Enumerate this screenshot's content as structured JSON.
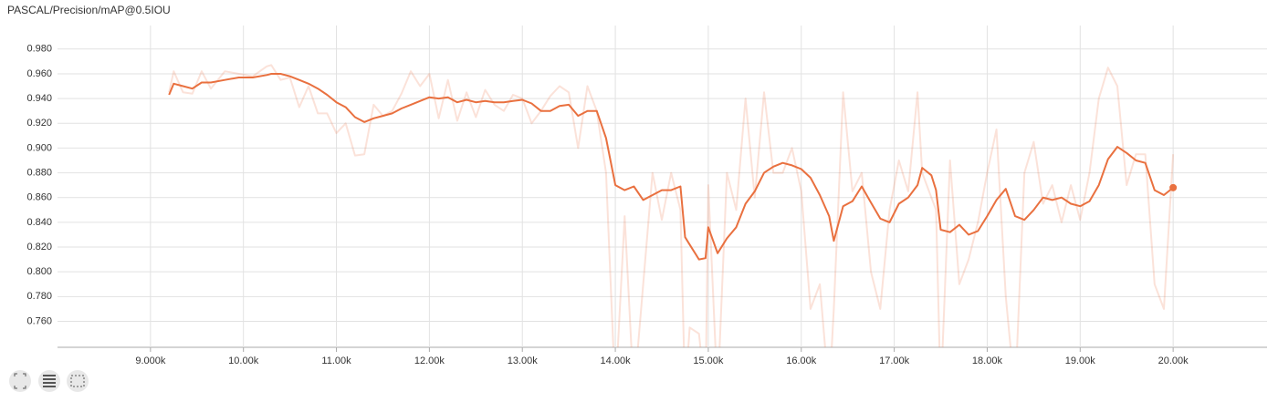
{
  "chart_data": {
    "type": "line",
    "title": "PASCAL/Precision/mAP@0.5IOU",
    "x": [
      9200,
      9250,
      9350,
      9450,
      9550,
      9650,
      9800,
      9950,
      10100,
      10250,
      10300,
      10400,
      10500,
      10600,
      10700,
      10800,
      10900,
      11000,
      11100,
      11200,
      11300,
      11400,
      11500,
      11600,
      11700,
      11800,
      11900,
      12000,
      12100,
      12200,
      12300,
      12400,
      12500,
      12600,
      12700,
      12800,
      12900,
      13000,
      13100,
      13200,
      13300,
      13400,
      13500,
      13600,
      13700,
      13800,
      13900,
      14000,
      14100,
      14200,
      14300,
      14400,
      14500,
      14600,
      14700,
      14750,
      14800,
      14900,
      14970,
      15000,
      15100,
      15200,
      15300,
      15400,
      15500,
      15600,
      15700,
      15800,
      15900,
      16000,
      16100,
      16200,
      16300,
      16350,
      16450,
      16550,
      16650,
      16750,
      16850,
      16950,
      17050,
      17150,
      17250,
      17300,
      17400,
      17450,
      17500,
      17600,
      17700,
      17800,
      17900,
      18000,
      18100,
      18200,
      18300,
      18400,
      18500,
      18600,
      18700,
      18800,
      18900,
      19000,
      19100,
      19200,
      19300,
      19400,
      19500,
      19600,
      19700,
      19800,
      19900,
      20000
    ],
    "series": [
      {
        "color": "#e9703f",
        "opacity": 0.2,
        "values": [
          0.945,
          0.962,
          0.945,
          0.944,
          0.962,
          0.948,
          0.962,
          0.96,
          0.958,
          0.966,
          0.967,
          0.955,
          0.957,
          0.933,
          0.95,
          0.928,
          0.928,
          0.912,
          0.92,
          0.894,
          0.895,
          0.935,
          0.926,
          0.93,
          0.944,
          0.962,
          0.95,
          0.96,
          0.924,
          0.955,
          0.922,
          0.945,
          0.925,
          0.947,
          0.935,
          0.93,
          0.943,
          0.94,
          0.92,
          0.93,
          0.942,
          0.95,
          0.945,
          0.9,
          0.95,
          0.93,
          0.88,
          0.7,
          0.845,
          0.7,
          0.79,
          0.88,
          0.842,
          0.88,
          0.85,
          0.7,
          0.755,
          0.75,
          0.7,
          0.87,
          0.7,
          0.88,
          0.85,
          0.94,
          0.86,
          0.945,
          0.88,
          0.88,
          0.9,
          0.865,
          0.77,
          0.79,
          0.7,
          0.77,
          0.945,
          0.865,
          0.88,
          0.8,
          0.77,
          0.85,
          0.89,
          0.865,
          0.945,
          0.88,
          0.86,
          0.85,
          0.7,
          0.89,
          0.79,
          0.81,
          0.84,
          0.88,
          0.915,
          0.78,
          0.7,
          0.88,
          0.905,
          0.855,
          0.87,
          0.84,
          0.87,
          0.842,
          0.88,
          0.94,
          0.965,
          0.95,
          0.87,
          0.895,
          0.895,
          0.79,
          0.77,
          0.895
        ]
      },
      {
        "color": "#e9703f",
        "opacity": 1,
        "values": [
          0.943,
          0.952,
          0.95,
          0.948,
          0.953,
          0.953,
          0.955,
          0.957,
          0.957,
          0.959,
          0.96,
          0.96,
          0.958,
          0.955,
          0.952,
          0.948,
          0.943,
          0.937,
          0.933,
          0.925,
          0.921,
          0.924,
          0.926,
          0.928,
          0.932,
          0.935,
          0.938,
          0.941,
          0.94,
          0.941,
          0.937,
          0.939,
          0.937,
          0.938,
          0.937,
          0.937,
          0.938,
          0.939,
          0.936,
          0.93,
          0.93,
          0.934,
          0.935,
          0.926,
          0.93,
          0.93,
          0.908,
          0.87,
          0.866,
          0.869,
          0.858,
          0.862,
          0.866,
          0.866,
          0.869,
          0.828,
          0.822,
          0.81,
          0.811,
          0.836,
          0.815,
          0.827,
          0.836,
          0.855,
          0.865,
          0.88,
          0.885,
          0.888,
          0.886,
          0.883,
          0.876,
          0.862,
          0.845,
          0.825,
          0.853,
          0.857,
          0.869,
          0.856,
          0.843,
          0.84,
          0.855,
          0.86,
          0.87,
          0.884,
          0.878,
          0.866,
          0.834,
          0.832,
          0.838,
          0.83,
          0.833,
          0.845,
          0.858,
          0.867,
          0.845,
          0.842,
          0.85,
          0.86,
          0.858,
          0.86,
          0.855,
          0.853,
          0.857,
          0.87,
          0.891,
          0.901,
          0.896,
          0.89,
          0.888,
          0.866,
          0.862,
          0.868
        ]
      }
    ],
    "xlim": [
      8000,
      21010
    ],
    "ylim": [
      0.739,
      0.999
    ],
    "xticks": [
      {
        "value": 9000,
        "label": "9.000k"
      },
      {
        "value": 10000,
        "label": "10.00k"
      },
      {
        "value": 11000,
        "label": "11.00k"
      },
      {
        "value": 12000,
        "label": "12.00k"
      },
      {
        "value": 13000,
        "label": "13.00k"
      },
      {
        "value": 14000,
        "label": "14.00k"
      },
      {
        "value": 15000,
        "label": "15.00k"
      },
      {
        "value": 16000,
        "label": "16.00k"
      },
      {
        "value": 17000,
        "label": "17.00k"
      },
      {
        "value": 18000,
        "label": "18.00k"
      },
      {
        "value": 19000,
        "label": "19.00k"
      },
      {
        "value": 20000,
        "label": "20.00k"
      }
    ],
    "yticks": [
      {
        "value": 0.76,
        "label": "0.760"
      },
      {
        "value": 0.78,
        "label": "0.780"
      },
      {
        "value": 0.8,
        "label": "0.800"
      },
      {
        "value": 0.82,
        "label": "0.820"
      },
      {
        "value": 0.84,
        "label": "0.840"
      },
      {
        "value": 0.86,
        "label": "0.860"
      },
      {
        "value": 0.88,
        "label": "0.880"
      },
      {
        "value": 0.9,
        "label": "0.900"
      },
      {
        "value": 0.92,
        "label": "0.920"
      },
      {
        "value": 0.94,
        "label": "0.940"
      },
      {
        "value": 0.96,
        "label": "0.960"
      },
      {
        "value": 0.98,
        "label": "0.980"
      }
    ],
    "grid": true
  }
}
